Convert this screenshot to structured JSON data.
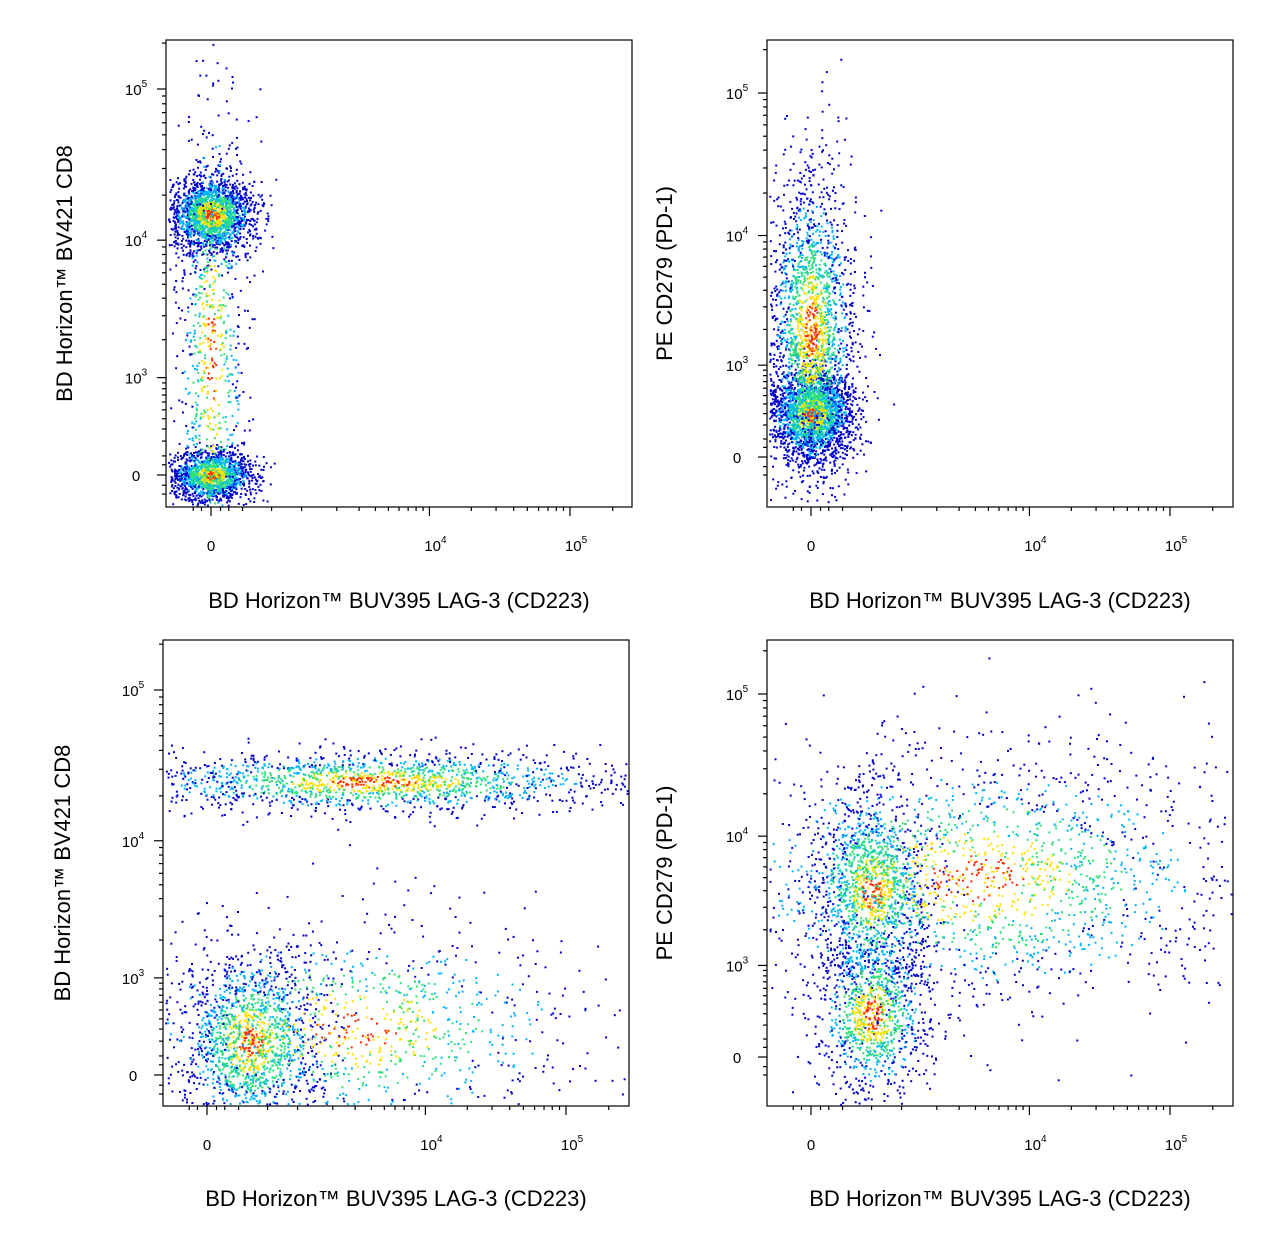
{
  "chart_data": [
    {
      "type": "scatter",
      "xlabel": "BD Horizon™ BUV395 LAG-3 (CD223)",
      "ylabel": "BD Horizon™ BV421 CD8",
      "x_scale": "biexponential",
      "y_scale": "biexponential",
      "x_tick_labels": [
        "0",
        "10^4",
        "10^5"
      ],
      "y_tick_labels": [
        "0",
        "10^3",
        "10^4",
        "10^5"
      ],
      "density_colors": [
        "#0000cc",
        "#00b4ff",
        "#2fe07a",
        "#ffe000",
        "#ff2a00"
      ],
      "populations": [
        {
          "x_center": 0,
          "y_center": 15000,
          "x_spread": 0.15,
          "y_spread": 0.12,
          "weight": 0.45
        },
        {
          "x_center": 0,
          "y_center": 0,
          "x_spread": 0.15,
          "y_spread": 0.08,
          "weight": 0.35
        },
        {
          "x_center": 0,
          "y_center": 1500,
          "x_spread": 0.12,
          "y_spread": 0.9,
          "weight": 0.2
        }
      ]
    },
    {
      "type": "scatter",
      "xlabel": "BD Horizon™ BUV395 LAG-3 (CD223)",
      "ylabel": "PE CD279 (PD-1)",
      "x_scale": "biexponential",
      "y_scale": "biexponential",
      "x_tick_labels": [
        "0",
        "10^4",
        "10^5"
      ],
      "y_tick_labels": [
        "0",
        "10^3",
        "10^4",
        "10^5"
      ],
      "density_colors": [
        "#0000cc",
        "#00b4ff",
        "#2fe07a",
        "#ffe000",
        "#ff2a00"
      ],
      "populations": [
        {
          "x_center": 0,
          "y_center": 300,
          "x_spread": 0.15,
          "y_spread": 0.15,
          "weight": 0.5
        },
        {
          "x_center": 0,
          "y_center": 2000,
          "x_spread": 0.15,
          "y_spread": 0.55,
          "weight": 0.5
        }
      ]
    },
    {
      "type": "scatter",
      "xlabel": "BD Horizon™ BUV395 LAG-3 (CD223)",
      "ylabel": "BD Horizon™ BV421 CD8",
      "x_scale": "biexponential",
      "y_scale": "biexponential",
      "x_tick_labels": [
        "0",
        "10^4",
        "10^5"
      ],
      "y_tick_labels": [
        "0",
        "10^3",
        "10^4",
        "10^5"
      ],
      "density_colors": [
        "#0000cc",
        "#00b4ff",
        "#2fe07a",
        "#ffe000",
        "#ff2a00"
      ],
      "populations": [
        {
          "x_center": 4000,
          "y_center": 25000,
          "x_spread": 0.9,
          "y_spread": 0.1,
          "weight": 0.4
        },
        {
          "x_center": 300,
          "y_center": 200,
          "x_spread": 0.25,
          "y_spread": 0.3,
          "weight": 0.35
        },
        {
          "x_center": 3000,
          "y_center": 300,
          "x_spread": 0.85,
          "y_spread": 0.35,
          "weight": 0.25
        }
      ]
    },
    {
      "type": "scatter",
      "xlabel": "BD Horizon™ BUV395 LAG-3 (CD223)",
      "ylabel": "PE CD279 (PD-1)",
      "x_scale": "biexponential",
      "y_scale": "biexponential",
      "x_tick_labels": [
        "0",
        "10^4",
        "10^5"
      ],
      "y_tick_labels": [
        "0",
        "10^3",
        "10^4",
        "10^5"
      ],
      "density_colors": [
        "#0000cc",
        "#00b4ff",
        "#2fe07a",
        "#ffe000",
        "#ff2a00"
      ],
      "populations": [
        {
          "x_center": 500,
          "y_center": 4000,
          "x_spread": 0.2,
          "y_spread": 0.35,
          "weight": 0.3
        },
        {
          "x_center": 4000,
          "y_center": 5000,
          "x_spread": 0.95,
          "y_spread": 0.45,
          "weight": 0.45
        },
        {
          "x_center": 500,
          "y_center": 300,
          "x_spread": 0.2,
          "y_spread": 0.3,
          "weight": 0.25
        }
      ]
    }
  ]
}
